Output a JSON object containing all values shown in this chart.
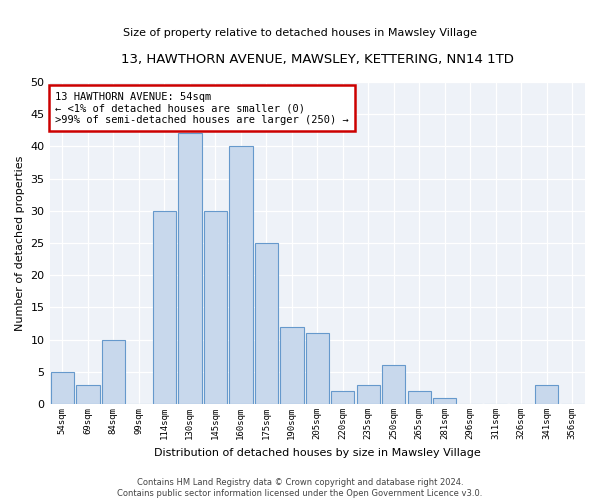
{
  "title": "13, HAWTHORN AVENUE, MAWSLEY, KETTERING, NN14 1TD",
  "subtitle": "Size of property relative to detached houses in Mawsley Village",
  "xlabel": "Distribution of detached houses by size in Mawsley Village",
  "ylabel": "Number of detached properties",
  "bar_labels": [
    "54sqm",
    "69sqm",
    "84sqm",
    "99sqm",
    "114sqm",
    "130sqm",
    "145sqm",
    "160sqm",
    "175sqm",
    "190sqm",
    "205sqm",
    "220sqm",
    "235sqm",
    "250sqm",
    "265sqm",
    "281sqm",
    "296sqm",
    "311sqm",
    "326sqm",
    "341sqm",
    "356sqm"
  ],
  "bar_values": [
    5,
    3,
    10,
    0,
    30,
    42,
    30,
    40,
    25,
    12,
    11,
    2,
    3,
    6,
    2,
    1,
    0,
    0,
    0,
    3,
    0
  ],
  "bar_color": "#c8d8ec",
  "bar_edge_color": "#6699cc",
  "ylim": [
    0,
    50
  ],
  "yticks": [
    0,
    5,
    10,
    15,
    20,
    25,
    30,
    35,
    40,
    45,
    50
  ],
  "annotation_title": "13 HAWTHORN AVENUE: 54sqm",
  "annotation_line1": "← <1% of detached houses are smaller (0)",
  "annotation_line2": ">99% of semi-detached houses are larger (250) →",
  "annotation_box_color": "#ffffff",
  "annotation_box_edge": "#cc0000",
  "footer1": "Contains HM Land Registry data © Crown copyright and database right 2024.",
  "footer2": "Contains public sector information licensed under the Open Government Licence v3.0.",
  "bg_color": "#ffffff",
  "plot_bg_color": "#eef2f8",
  "grid_color": "#ffffff"
}
